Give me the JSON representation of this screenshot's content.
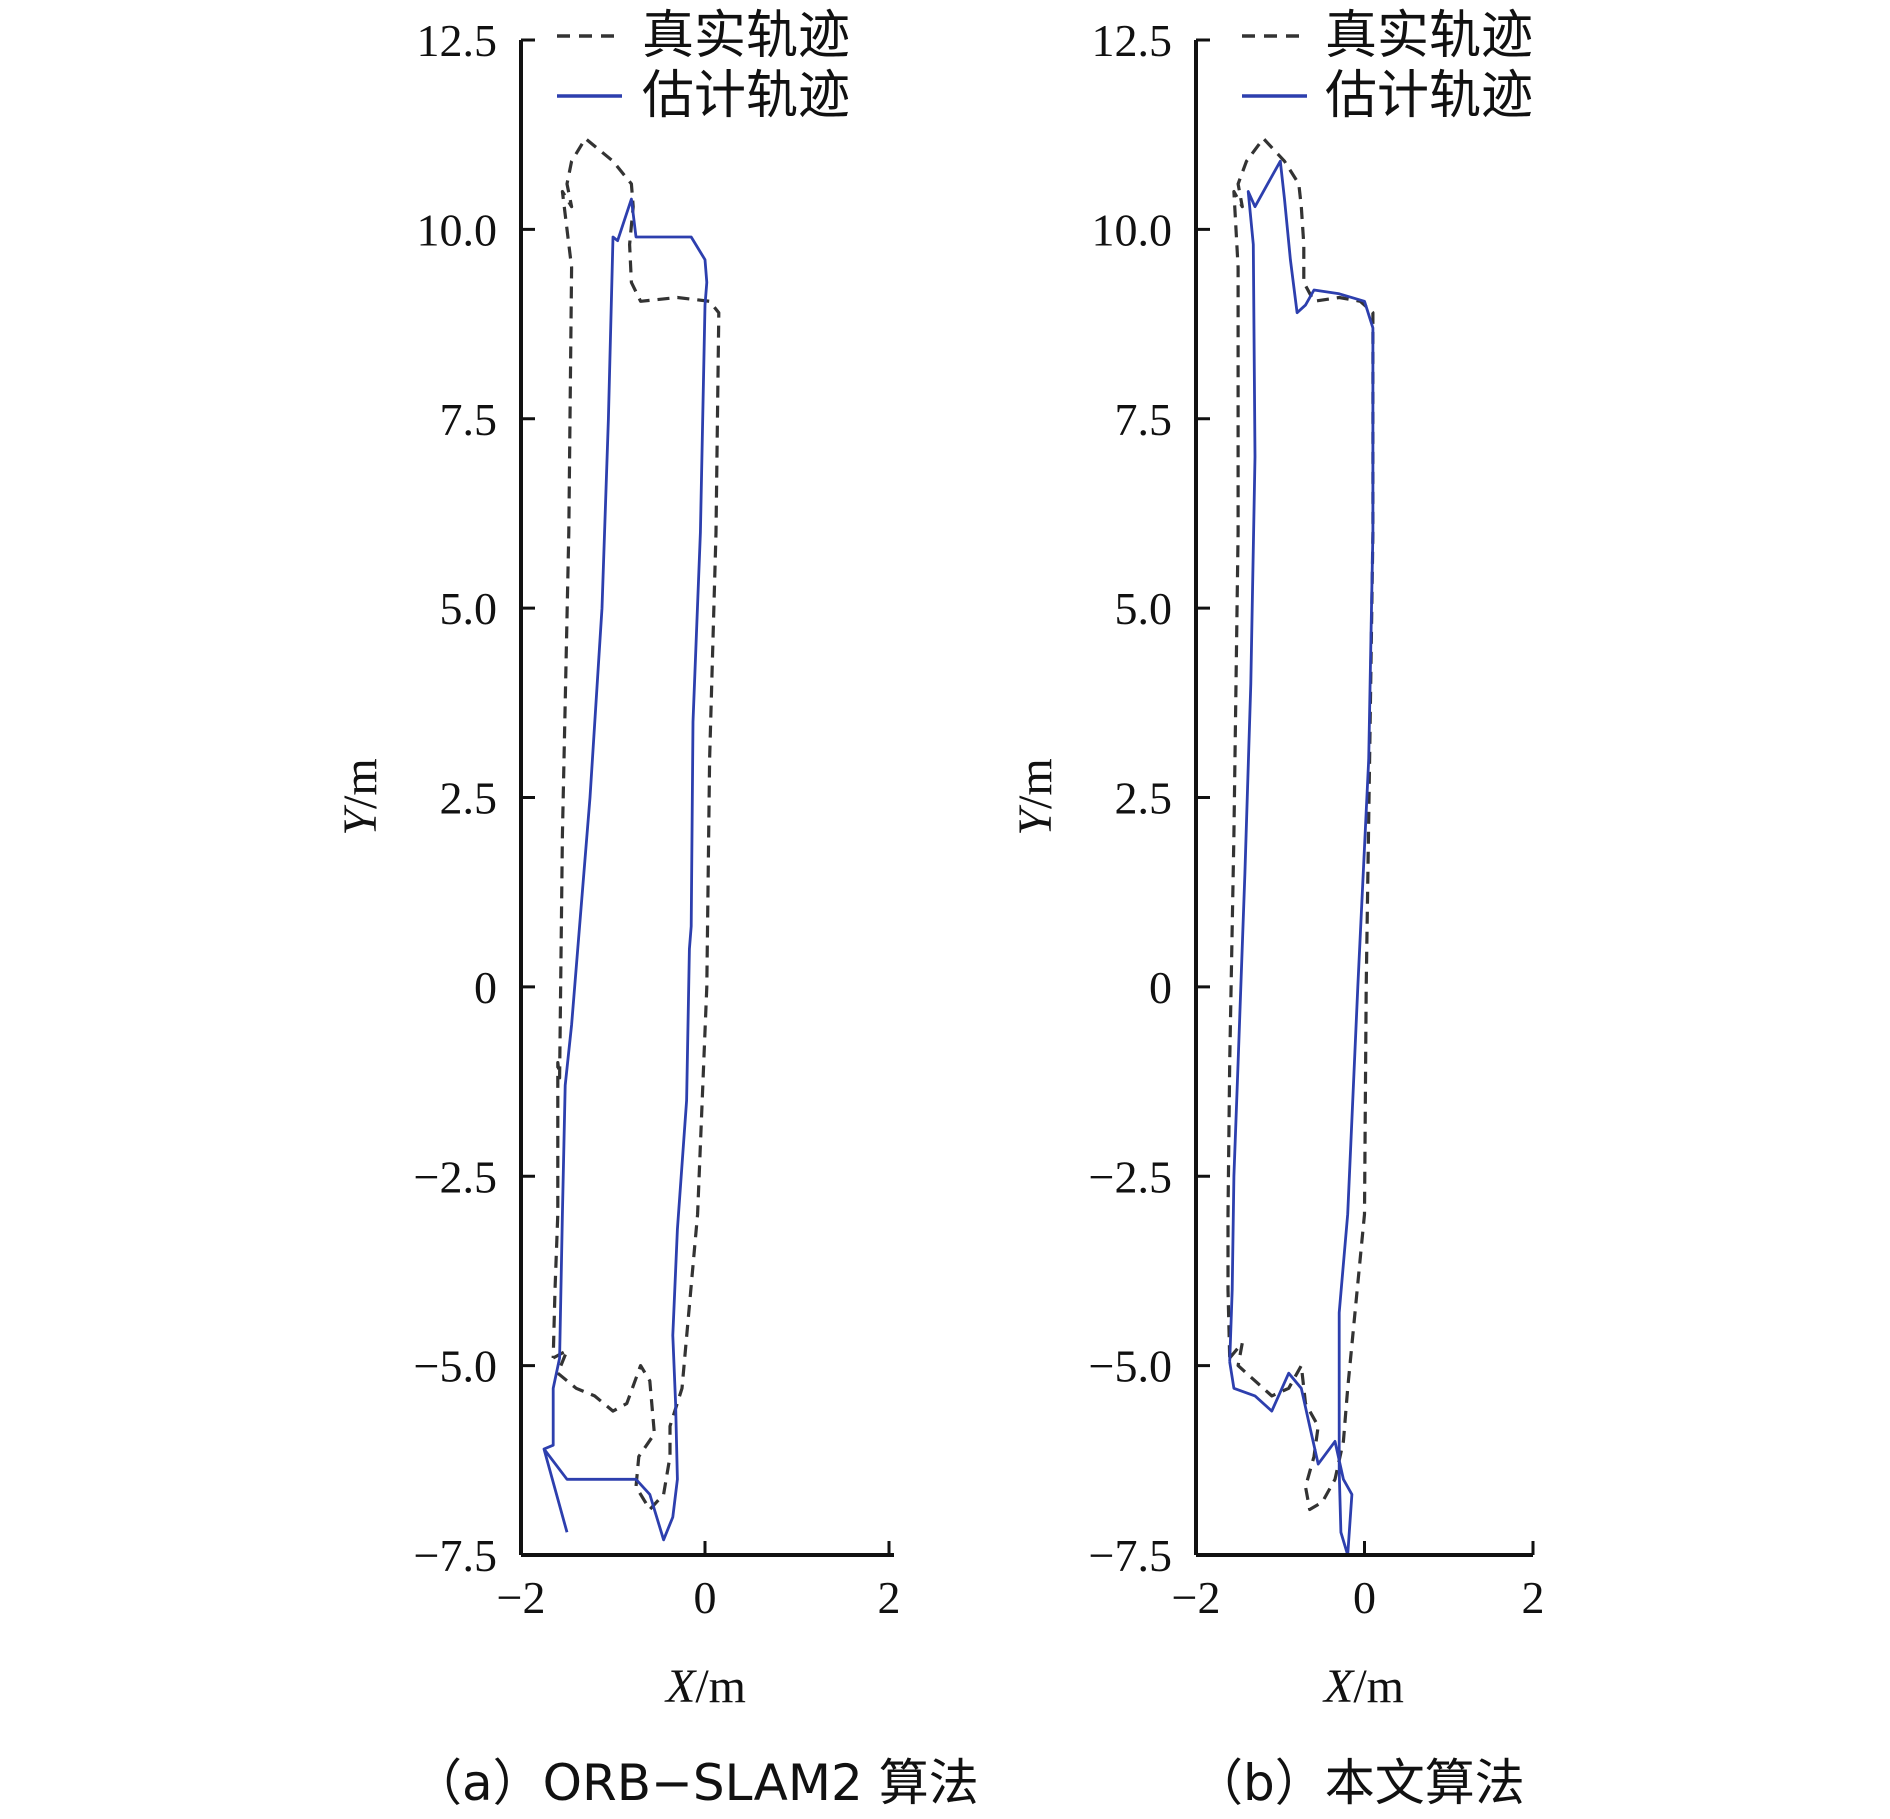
{
  "chart_data": [
    {
      "type": "line",
      "caption": "（a）ORB−SLAM2 算法",
      "xlabel_var": "X",
      "xlabel_unit": "/m",
      "ylabel_var": "Y",
      "ylabel_unit": "/m",
      "xlim": [
        -2,
        2
      ],
      "ylim": [
        -7.5,
        12.5
      ],
      "x_ticks": [
        "−2",
        "0",
        "2"
      ],
      "y_ticks": [
        "12.5",
        "10.0",
        "7.5",
        "5.0",
        "2.5",
        "0",
        "−2.5",
        "−5.0",
        "−7.5"
      ],
      "legend_position": "top-right",
      "series": [
        {
          "name": "真实轨迹",
          "style": "dashed",
          "color": "#333333",
          "points": [
            [
              -1.65,
              -4.9
            ],
            [
              -1.5,
              -4.8
            ],
            [
              -1.6,
              -5.1
            ],
            [
              -1.4,
              -5.3
            ],
            [
              -1.2,
              -5.4
            ],
            [
              -1.0,
              -5.6
            ],
            [
              -0.85,
              -5.5
            ],
            [
              -0.7,
              -5.0
            ],
            [
              -0.6,
              -5.2
            ],
            [
              -0.55,
              -5.9
            ],
            [
              -0.72,
              -6.2
            ],
            [
              -0.75,
              -6.6
            ],
            [
              -0.6,
              -6.9
            ],
            [
              -0.45,
              -6.7
            ],
            [
              -0.38,
              -6.2
            ],
            [
              -0.38,
              -5.8
            ],
            [
              -0.25,
              -5.3
            ],
            [
              -0.08,
              -3.0
            ],
            [
              0.02,
              0.0
            ],
            [
              0.05,
              3.0
            ],
            [
              0.12,
              6.0
            ],
            [
              0.15,
              8.9
            ],
            [
              0.05,
              9.05
            ],
            [
              -0.3,
              9.1
            ],
            [
              -0.7,
              9.05
            ],
            [
              -0.8,
              9.3
            ],
            [
              -0.82,
              9.8
            ],
            [
              -0.78,
              10.3
            ],
            [
              -0.8,
              10.6
            ],
            [
              -1.0,
              10.9
            ],
            [
              -1.3,
              11.2
            ],
            [
              -1.45,
              10.9
            ],
            [
              -1.5,
              10.6
            ],
            [
              -1.45,
              10.3
            ],
            [
              -1.55,
              10.5
            ],
            [
              -1.45,
              9.5
            ],
            [
              -1.48,
              6.0
            ],
            [
              -1.55,
              2.0
            ],
            [
              -1.58,
              -1.2
            ],
            [
              -1.6,
              -1.0
            ],
            [
              -1.6,
              -3.0
            ],
            [
              -1.63,
              -4.0
            ],
            [
              -1.65,
              -4.9
            ]
          ]
        },
        {
          "name": "估计轨迹",
          "style": "solid",
          "color": "#2d3fae",
          "points": [
            [
              -1.5,
              -7.2
            ],
            [
              -1.75,
              -6.1
            ],
            [
              -1.65,
              -6.05
            ],
            [
              -1.65,
              -5.3
            ],
            [
              -1.58,
              -4.9
            ],
            [
              -1.55,
              -3.0
            ],
            [
              -1.52,
              -1.3
            ],
            [
              -1.45,
              -0.5
            ],
            [
              -1.25,
              2.5
            ],
            [
              -1.12,
              5.0
            ],
            [
              -1.05,
              7.5
            ],
            [
              -1.0,
              9.9
            ],
            [
              -0.95,
              9.85
            ],
            [
              -0.8,
              10.4
            ],
            [
              -0.75,
              9.9
            ],
            [
              -0.5,
              9.9
            ],
            [
              -0.15,
              9.9
            ],
            [
              0.0,
              9.6
            ],
            [
              0.02,
              9.3
            ],
            [
              0.0,
              9.0
            ],
            [
              -0.05,
              6.0
            ],
            [
              -0.13,
              3.5
            ],
            [
              -0.15,
              0.8
            ],
            [
              -0.17,
              0.5
            ],
            [
              -0.2,
              -1.5
            ],
            [
              -0.3,
              -3.2
            ],
            [
              -0.35,
              -4.6
            ],
            [
              -0.32,
              -5.5
            ],
            [
              -0.3,
              -6.5
            ],
            [
              -0.35,
              -7.0
            ],
            [
              -0.45,
              -7.3
            ],
            [
              -0.6,
              -6.7
            ],
            [
              -0.75,
              -6.5
            ],
            [
              -1.05,
              -6.5
            ],
            [
              -1.3,
              -6.5
            ],
            [
              -1.5,
              -6.5
            ],
            [
              -1.75,
              -6.1
            ]
          ]
        }
      ]
    },
    {
      "type": "line",
      "caption": "（b）本文算法",
      "xlabel_var": "X",
      "xlabel_unit": "/m",
      "ylabel_var": "Y",
      "ylabel_unit": "/m",
      "xlim": [
        -2,
        2
      ],
      "ylim": [
        -7.5,
        12.5
      ],
      "x_ticks": [
        "−2",
        "0",
        "2"
      ],
      "y_ticks": [
        "12.5",
        "10.0",
        "7.5",
        "5.0",
        "2.5",
        "0",
        "−2.5",
        "−5.0",
        "−7.5"
      ],
      "legend_position": "top-right",
      "series": [
        {
          "name": "真实轨迹",
          "style": "dashed",
          "color": "#333333",
          "points": [
            [
              -1.6,
              -4.9
            ],
            [
              -1.45,
              -4.7
            ],
            [
              -1.5,
              -5.0
            ],
            [
              -1.3,
              -5.2
            ],
            [
              -1.1,
              -5.4
            ],
            [
              -0.9,
              -5.3
            ],
            [
              -0.75,
              -5.0
            ],
            [
              -0.7,
              -5.5
            ],
            [
              -0.55,
              -5.8
            ],
            [
              -0.6,
              -6.2
            ],
            [
              -0.7,
              -6.6
            ],
            [
              -0.65,
              -6.9
            ],
            [
              -0.5,
              -6.8
            ],
            [
              -0.35,
              -6.5
            ],
            [
              -0.25,
              -6.0
            ],
            [
              -0.2,
              -5.3
            ],
            [
              0.0,
              -3.0
            ],
            [
              0.02,
              0.0
            ],
            [
              0.06,
              3.0
            ],
            [
              0.1,
              6.0
            ],
            [
              0.1,
              8.9
            ],
            [
              -0.05,
              9.05
            ],
            [
              -0.3,
              9.1
            ],
            [
              -0.6,
              9.05
            ],
            [
              -0.72,
              9.3
            ],
            [
              -0.72,
              9.8
            ],
            [
              -0.75,
              10.3
            ],
            [
              -0.78,
              10.6
            ],
            [
              -0.95,
              10.9
            ],
            [
              -1.2,
              11.2
            ],
            [
              -1.4,
              10.9
            ],
            [
              -1.5,
              10.6
            ],
            [
              -1.45,
              10.3
            ],
            [
              -1.55,
              10.5
            ],
            [
              -1.5,
              9.5
            ],
            [
              -1.5,
              6.0
            ],
            [
              -1.55,
              2.0
            ],
            [
              -1.6,
              -1.0
            ],
            [
              -1.62,
              -3.0
            ],
            [
              -1.62,
              -4.0
            ],
            [
              -1.6,
              -4.9
            ]
          ]
        },
        {
          "name": "估计轨迹",
          "style": "solid",
          "color": "#2d3fae",
          "points": [
            [
              -1.6,
              -4.95
            ],
            [
              -1.55,
              -5.3
            ],
            [
              -1.3,
              -5.4
            ],
            [
              -1.1,
              -5.6
            ],
            [
              -0.9,
              -5.1
            ],
            [
              -0.75,
              -5.3
            ],
            [
              -0.65,
              -5.8
            ],
            [
              -0.55,
              -6.3
            ],
            [
              -0.35,
              -6.0
            ],
            [
              -0.25,
              -6.5
            ],
            [
              -0.15,
              -6.7
            ],
            [
              -0.2,
              -7.5
            ],
            [
              -0.28,
              -7.2
            ],
            [
              -0.3,
              -6.4
            ],
            [
              -0.3,
              -4.3
            ],
            [
              -0.2,
              -3.0
            ],
            [
              -0.08,
              0.0
            ],
            [
              0.05,
              3.0
            ],
            [
              0.1,
              6.0
            ],
            [
              0.1,
              8.7
            ],
            [
              0.0,
              9.05
            ],
            [
              -0.3,
              9.15
            ],
            [
              -0.6,
              9.2
            ],
            [
              -0.7,
              9.0
            ],
            [
              -0.8,
              8.9
            ],
            [
              -0.88,
              9.6
            ],
            [
              -0.95,
              10.4
            ],
            [
              -1.0,
              10.9
            ],
            [
              -1.15,
              10.6
            ],
            [
              -1.3,
              10.3
            ],
            [
              -1.38,
              10.5
            ],
            [
              -1.32,
              9.8
            ],
            [
              -1.3,
              7.0
            ],
            [
              -1.35,
              4.0
            ],
            [
              -1.42,
              1.5
            ],
            [
              -1.5,
              -1.0
            ],
            [
              -1.55,
              -2.5
            ],
            [
              -1.57,
              -4.0
            ],
            [
              -1.6,
              -4.95
            ]
          ]
        }
      ]
    }
  ]
}
